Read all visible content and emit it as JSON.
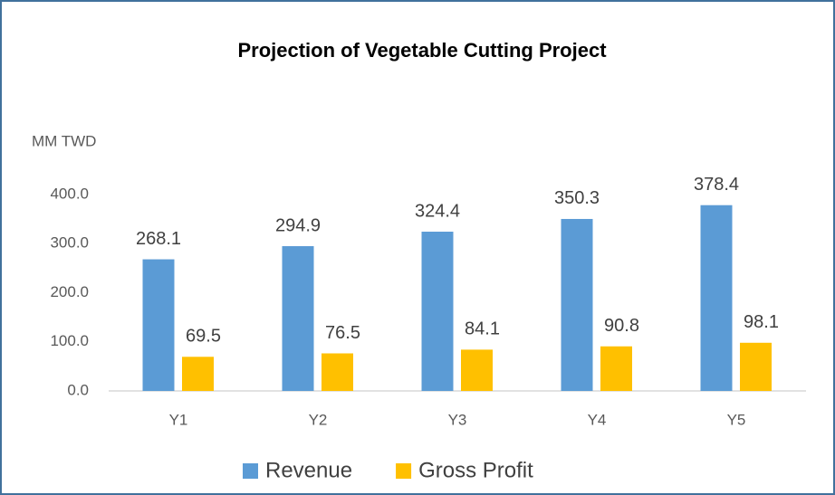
{
  "chart_data": {
    "type": "bar",
    "title": "Projection of Vegetable Cutting Project",
    "y_label": "MM TWD",
    "categories": [
      "Y1",
      "Y2",
      "Y3",
      "Y4",
      "Y5"
    ],
    "series": [
      {
        "name": "Revenue",
        "color": "#5b9bd5",
        "values": [
          268.1,
          294.9,
          324.4,
          350.3,
          378.4
        ]
      },
      {
        "name": "Gross Profit",
        "color": "#ffc000",
        "values": [
          69.5,
          76.5,
          84.1,
          90.8,
          98.1
        ]
      }
    ],
    "ylim": [
      0,
      400
    ],
    "yticks": [
      {
        "value": 0,
        "label": "0.0"
      },
      {
        "value": 100,
        "label": "100.0"
      },
      {
        "value": 200,
        "label": "200.0"
      },
      {
        "value": 300,
        "label": "300.0"
      },
      {
        "value": 400,
        "label": "400.0"
      }
    ],
    "grid": false,
    "legend": "bottom"
  }
}
